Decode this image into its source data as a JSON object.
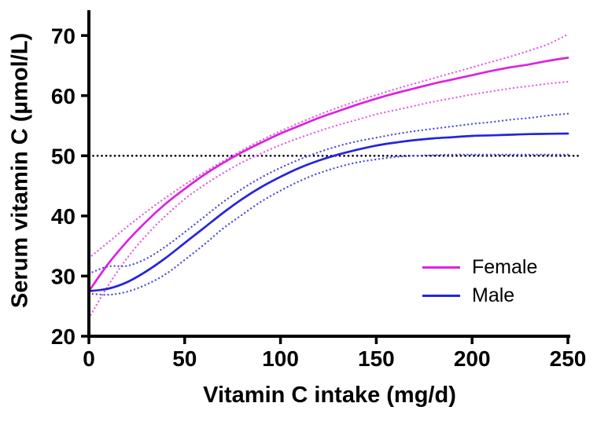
{
  "chart_data": {
    "type": "line",
    "title": "",
    "xlabel": "Vitamin C intake (mg/d)",
    "ylabel": "Serum vitamin C (µmol/L)",
    "xlim": [
      0,
      250
    ],
    "ylim": [
      20,
      74.2
    ],
    "xticks": [
      0,
      50,
      100,
      150,
      200,
      250
    ],
    "yticks": [
      20,
      30,
      40,
      50,
      60,
      70
    ],
    "grid": false,
    "axis_color": "#000000",
    "reference_lines": [
      {
        "axis": "y",
        "value": 50,
        "style": "dotted",
        "color": "#000000"
      }
    ],
    "x": [
      0,
      10,
      20,
      30,
      40,
      50,
      60,
      70,
      80,
      90,
      100,
      110,
      120,
      130,
      140,
      150,
      160,
      170,
      180,
      190,
      200,
      210,
      220,
      230,
      240,
      250
    ],
    "series": [
      {
        "name": "Female",
        "role": "mean",
        "color": "#DE21DE",
        "style": "solid",
        "values": [
          27.5,
          32.0,
          35.8,
          39.1,
          42.0,
          44.5,
          46.8,
          48.8,
          50.6,
          52.2,
          53.7,
          55.0,
          56.3,
          57.4,
          58.5,
          59.5,
          60.4,
          61.2,
          62.0,
          62.7,
          63.4,
          64.1,
          64.7,
          65.2,
          65.8,
          66.3
        ]
      },
      {
        "name": "Female CI upper",
        "role": "ci-upper",
        "color": "#E85CE0",
        "style": "dotted",
        "values": [
          33.0,
          35.6,
          38.2,
          40.7,
          43.0,
          45.2,
          47.2,
          49.1,
          50.9,
          52.6,
          54.1,
          55.5,
          56.8,
          58.0,
          59.1,
          60.1,
          61.1,
          62.0,
          62.9,
          63.8,
          64.7,
          65.6,
          66.5,
          67.5,
          68.6,
          70.2
        ]
      },
      {
        "name": "Female CI lower",
        "role": "ci-lower",
        "color": "#E85CE0",
        "style": "dotted",
        "values": [
          23.0,
          28.4,
          33.0,
          36.8,
          40.0,
          42.8,
          45.1,
          47.1,
          48.9,
          50.4,
          51.8,
          53.0,
          54.1,
          55.1,
          56.0,
          56.9,
          57.6,
          58.3,
          59.0,
          59.6,
          60.2,
          60.7,
          61.2,
          61.6,
          62.0,
          62.3
        ]
      },
      {
        "name": "Male",
        "role": "mean",
        "color": "#2424DE",
        "style": "solid",
        "values": [
          27.5,
          27.9,
          29.0,
          30.8,
          33.0,
          35.5,
          38.0,
          40.5,
          42.8,
          44.8,
          46.5,
          48.0,
          49.2,
          50.2,
          51.0,
          51.7,
          52.2,
          52.6,
          52.9,
          53.1,
          53.3,
          53.4,
          53.5,
          53.6,
          53.65,
          53.7
        ]
      },
      {
        "name": "Male CI upper",
        "role": "ci-upper",
        "color": "#4A4AE8",
        "style": "dotted",
        "values": [
          30.4,
          31.6,
          31.7,
          32.9,
          34.9,
          37.3,
          39.8,
          42.3,
          44.5,
          46.4,
          48.0,
          49.4,
          50.6,
          51.6,
          52.4,
          53.0,
          53.6,
          54.1,
          54.5,
          54.9,
          55.3,
          55.6,
          56.0,
          56.3,
          56.7,
          57.0
        ]
      },
      {
        "name": "Male CI lower",
        "role": "ci-lower",
        "color": "#4A4AE8",
        "style": "dotted",
        "values": [
          27.1,
          26.9,
          27.4,
          28.6,
          30.3,
          32.7,
          35.2,
          37.9,
          40.2,
          42.4,
          44.2,
          45.8,
          47.1,
          48.1,
          48.9,
          49.4,
          49.8,
          50.0,
          50.1,
          50.2,
          50.2,
          50.2,
          50.2,
          50.2,
          50.2,
          50.2
        ]
      }
    ],
    "legend": {
      "position": "inside-right",
      "items": [
        {
          "label": "Female",
          "color": "#DE21DE"
        },
        {
          "label": "Male",
          "color": "#2424DE"
        }
      ]
    }
  }
}
